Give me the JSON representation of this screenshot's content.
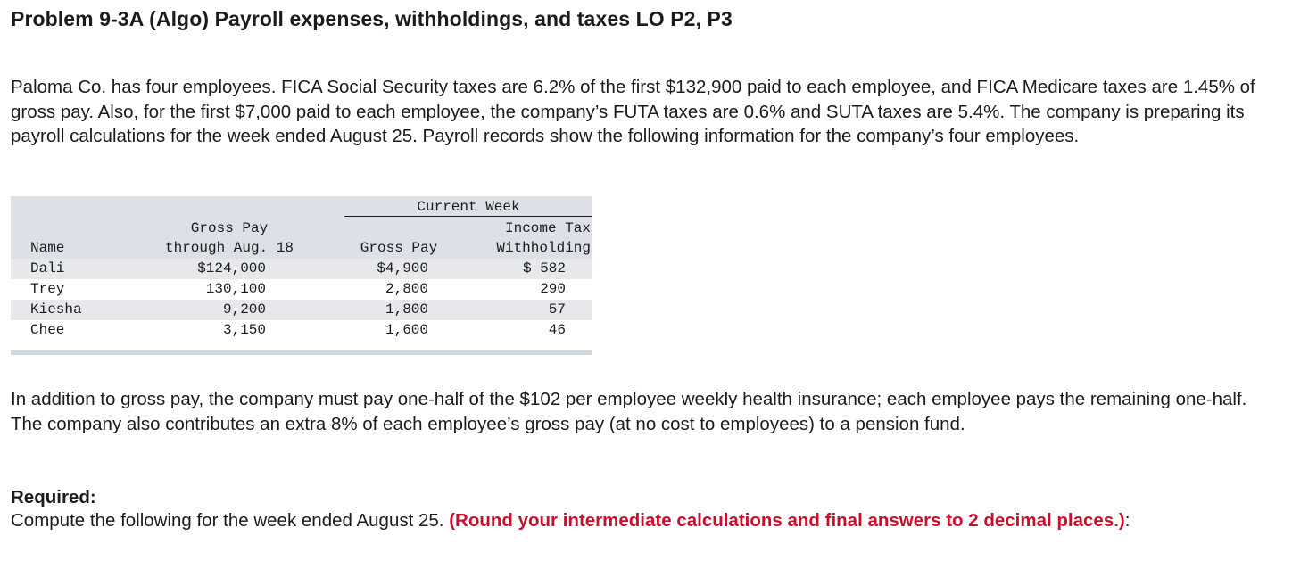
{
  "problem": {
    "title": "Problem 9-3A (Algo) Payroll expenses, withholdings, and taxes LO P2, P3",
    "intro": "Paloma Co. has four employees. FICA Social Security taxes are 6.2% of the first $132,900 paid to each employee, and FICA Medicare taxes are 1.45% of gross pay. Also, for the first $7,000 paid to each employee, the company’s FUTA taxes are 0.6% and SUTA taxes are 5.4%. The company is preparing its payroll calculations for the week ended August 25. Payroll records show the following information for the company’s four employees.",
    "additional": "In addition to gross pay, the company must pay one-half of the $102 per employee weekly health insurance; each employee pays the remaining one-half. The company also contributes an extra 8% of each employee’s gross pay (at no cost to employees) to a pension fund.",
    "required_heading": "Required:",
    "required_text": "Compute the following for the week ended August 25. ",
    "required_note": "(Round your intermediate calculations and final answers to 2 decimal places.)",
    "required_end": ":"
  },
  "table": {
    "group_header": "Current Week",
    "headers": {
      "name": "Name",
      "gross_through_line1": "Gross Pay",
      "gross_through_line2": "through Aug. 18",
      "gross_pay": "Gross Pay",
      "income_tax_line1": "Income Tax",
      "income_tax_line2": "Withholding"
    },
    "rows": [
      {
        "name": "Dali",
        "gross_through": "$124,000",
        "gross_pay": "$4,900",
        "income_tax": "$ 582"
      },
      {
        "name": "Trey",
        "gross_through": "130,100",
        "gross_pay": "2,800",
        "income_tax": "290"
      },
      {
        "name": "Kiesha",
        "gross_through": "9,200",
        "gross_pay": "1,800",
        "income_tax": "57"
      },
      {
        "name": "Chee",
        "gross_through": "3,150",
        "gross_pay": "1,600",
        "income_tax": "46"
      }
    ]
  },
  "colors": {
    "header_band": "#dde0e6",
    "accent_red": "#c8102e"
  }
}
